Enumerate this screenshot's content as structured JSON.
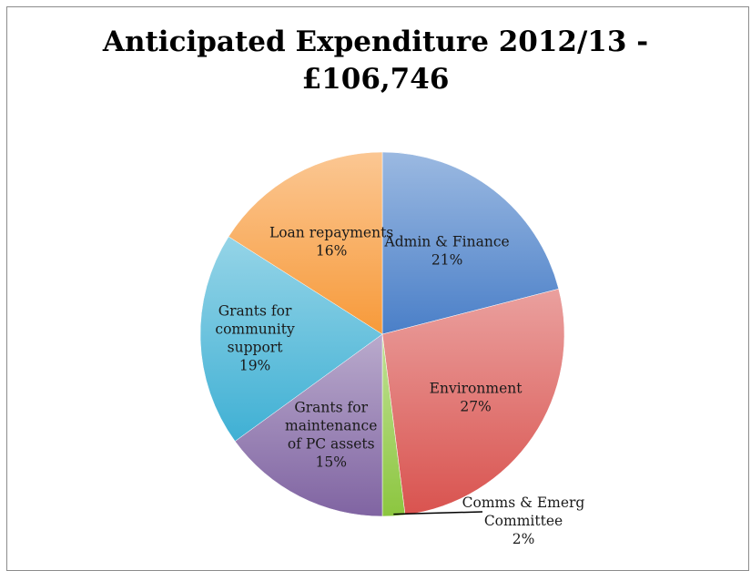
{
  "chart_data": {
    "type": "pie",
    "title": "Anticipated Expenditure 2012/13 - £106,746",
    "title_lines": [
      "Anticipated Expenditure 2012/13 -",
      "£106,746"
    ],
    "categories": [
      "Admin & Finance",
      "Environment",
      "Comms & Emerg Committee",
      "Grants for maintenance of PC assets",
      "Grants for community support",
      "Loan repayments"
    ],
    "values": [
      21,
      27,
      2,
      15,
      19,
      16
    ],
    "value_labels": [
      "21%",
      "27%",
      "2%",
      "15%",
      "19%",
      "16%"
    ],
    "label_lines": [
      [
        "Admin & Finance"
      ],
      [
        "Environment"
      ],
      [
        "Comms & Emerg",
        "Committee"
      ],
      [
        "Grants for",
        "maintenance",
        "of PC assets"
      ],
      [
        "Grants for",
        "community",
        "support"
      ],
      [
        "Loan repayments"
      ]
    ],
    "colors": [
      "#4a7fc8",
      "#d9534f",
      "#8cc63f",
      "#8064a2",
      "#3fb0d4",
      "#f79a3a"
    ],
    "legend": "none",
    "data_labels": "inside, category and percentage"
  }
}
